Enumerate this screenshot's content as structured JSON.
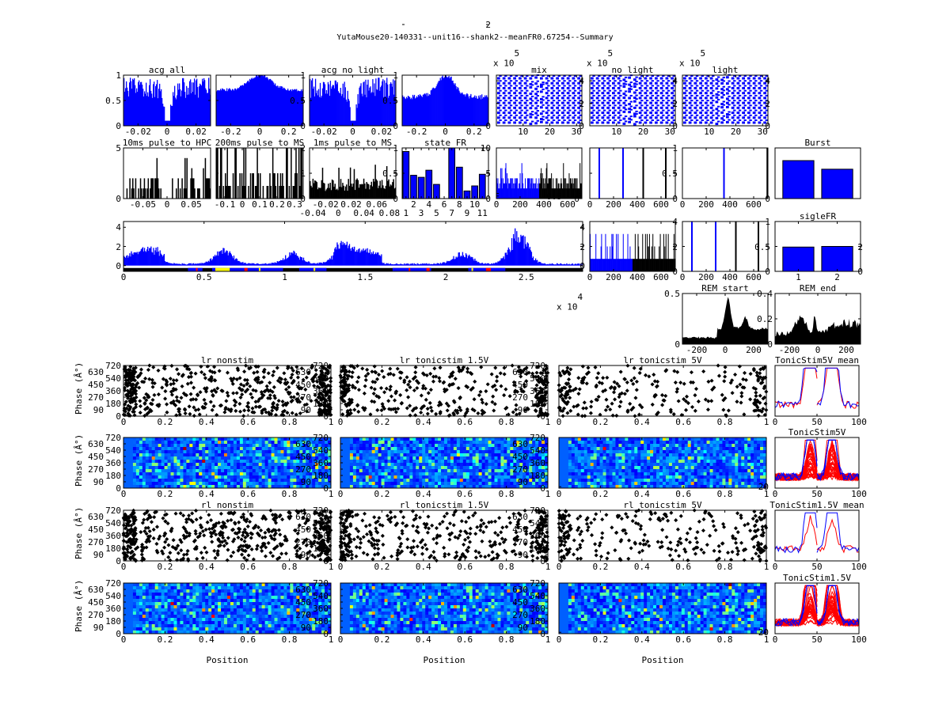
{
  "figure_title": "YutaMouse20-140331--unit16--shank2--meanFR0.67254--Summary",
  "multipliers": {
    "x10_5": "x 10",
    "exp5": "5",
    "x10_4": "x 10",
    "exp4": "4"
  },
  "phase_ylabel": "Phase (Â°)",
  "position_xlabel": "Position",
  "colors": {
    "blue": "#0000ff",
    "red": "#ff0000",
    "black": "#000000",
    "yellow": "#ffff00"
  },
  "chart_data": [
    {
      "id": "acg_all",
      "type": "bar",
      "title": "acg all",
      "xlim": [
        -0.03,
        0.03
      ],
      "ylim": [
        0,
        1
      ],
      "xticks": [
        "-0.02",
        "0",
        "0.02"
      ],
      "yticks": [
        "0",
        "0.5",
        "1"
      ],
      "yside": "left",
      "color": "#0000ff"
    },
    {
      "id": "acg_all_wide",
      "type": "bar",
      "title": "",
      "xlim": [
        -0.3,
        0.3
      ],
      "ylim": [
        0,
        1
      ],
      "xticks": [
        "-0.2",
        "0",
        "0.2"
      ],
      "yticks": [
        "0",
        "0.5",
        "1"
      ],
      "yside": "right",
      "color": "#0000ff"
    },
    {
      "id": "acg_nolight",
      "type": "bar",
      "title": "acg no light",
      "xlim": [
        -0.03,
        0.03
      ],
      "ylim": [
        0,
        1
      ],
      "xticks": [
        "-0.02",
        "0",
        "0.02"
      ],
      "yticks": [
        "0",
        "0.5",
        "1"
      ],
      "yside": "right",
      "color": "#0000ff"
    },
    {
      "id": "acg_nolight_wide",
      "type": "bar",
      "title": "",
      "xlim": [
        -0.3,
        0.3
      ],
      "ylim": [
        0,
        1
      ],
      "xticks": [
        "-0.2",
        "0",
        "0.2"
      ],
      "yticks": [
        "0",
        "2",
        "4"
      ],
      "yside": "right",
      "color": "#0000ff"
    },
    {
      "id": "wave_mix",
      "type": "waveform",
      "title": "mix",
      "xlim": [
        0,
        32
      ],
      "ylim": [
        0,
        4.5
      ],
      "xticks": [
        "10",
        "20",
        "30"
      ],
      "yticks": [
        "0",
        "2",
        "4"
      ],
      "yside": "right",
      "multiplier": true
    },
    {
      "id": "wave_nolight",
      "type": "waveform",
      "title": "no light",
      "xlim": [
        0,
        32
      ],
      "ylim": [
        0,
        4.5
      ],
      "xticks": [
        "10",
        "20",
        "30"
      ],
      "yticks": [
        "0",
        "2",
        "4"
      ],
      "yside": "right",
      "multiplier": true
    },
    {
      "id": "wave_light",
      "type": "waveform",
      "title": "light",
      "xlim": [
        0,
        32
      ],
      "ylim": [
        0,
        4.5
      ],
      "xticks": [
        "10",
        "20",
        "30"
      ],
      "yticks": [
        "0",
        "2",
        "4"
      ],
      "yside": "right",
      "multiplier": true
    },
    {
      "id": "pulse10_hpc",
      "type": "bar",
      "title": "10ms pulse to HPC",
      "xlim": [
        -0.09,
        0.09
      ],
      "ylim": [
        0,
        5
      ],
      "xticks": [
        "-0.05",
        "0",
        "0.05"
      ],
      "yticks": [
        "0",
        "5"
      ],
      "yside": "left",
      "color": "#000000"
    },
    {
      "id": "pulse200_ms",
      "type": "bar",
      "title": "200ms pulse to MS",
      "xlim": [
        -0.15,
        0.35
      ],
      "ylim": [
        0,
        2
      ],
      "xticks": [
        "-0.1",
        "0",
        "0.1",
        "0.2",
        "0.3"
      ],
      "yticks": [
        "0",
        "1",
        "2"
      ],
      "yside": "right",
      "color": "#000000"
    },
    {
      "id": "pulse1_ms",
      "type": "bar",
      "title": "1ms pulse to MS",
      "xlim": [
        -0.045,
        0.09
      ],
      "ylim": [
        0,
        1
      ],
      "xticks": [
        "-0.04",
        "-0.02",
        "0",
        "0.02",
        "0.04",
        "0.06",
        "0.08"
      ],
      "yticks": [
        "0",
        "0.5",
        "1"
      ],
      "yside": "right",
      "color": "#000000"
    },
    {
      "id": "state_fr",
      "type": "categorical_bar",
      "title": "state FR",
      "xlim": [
        0.5,
        11.8
      ],
      "ylim": [
        0,
        10
      ],
      "xticks": [
        "1",
        "2",
        "3",
        "4",
        "5",
        "6",
        "7",
        "8",
        "9",
        "10",
        "11"
      ],
      "yticks": [
        "0",
        "5",
        "10"
      ],
      "yside": "right",
      "values": [
        9.3,
        4.6,
        4.2,
        5.6,
        2.8,
        0,
        10,
        6.2,
        1.5,
        2.5,
        4.8
      ],
      "color": "#0000ff"
    },
    {
      "id": "isi_mix",
      "type": "bar",
      "title": "",
      "xlim": [
        0,
        720
      ],
      "ylim": [
        0,
        10
      ],
      "xticks": [
        "0",
        "200",
        "400",
        "600"
      ],
      "yticks": [
        "0",
        "0.5",
        "1"
      ],
      "yside": "right",
      "split": 360
    },
    {
      "id": "vlines_a",
      "type": "vlines",
      "title": "",
      "xlim": [
        0,
        720
      ],
      "ylim": [
        0,
        1
      ],
      "xticks": [
        "0",
        "200",
        "400",
        "600"
      ],
      "yticks": [
        "0",
        "0.5",
        "1"
      ],
      "yside": "right",
      "blue": [
        80,
        280
      ],
      "black": [
        450,
        640
      ]
    },
    {
      "id": "vlines_b",
      "type": "vlines",
      "title": "",
      "xlim": [
        0,
        720
      ],
      "ylim": [
        0,
        1
      ],
      "xticks": [
        "0",
        "200",
        "400",
        "600"
      ],
      "yticks": [
        "0"
      ],
      "yside": "right",
      "blue": [
        350
      ],
      "black": [
        715
      ]
    },
    {
      "id": "burst",
      "type": "categorical_bar",
      "title": "Burst",
      "xlim": [
        0.4,
        2.6
      ],
      "ylim": [
        0,
        1
      ],
      "xticks": [],
      "yticks": [],
      "yside": "right",
      "values": [
        0.75,
        0.58
      ],
      "color": "#0000ff"
    },
    {
      "id": "fr_timeline",
      "type": "timeline",
      "title": "",
      "xlim": [
        0,
        2.85
      ],
      "ylim": [
        -0.6,
        4.6
      ],
      "xticks": [
        "0",
        "0.5",
        "1",
        "1.5",
        "2",
        "2.5"
      ],
      "yticks": [
        "0",
        "2",
        "4"
      ],
      "yside": "both",
      "multiplier_exp": "4"
    },
    {
      "id": "isi_mix2",
      "type": "bar",
      "title": "",
      "xlim": [
        0,
        720
      ],
      "ylim": [
        0,
        4
      ],
      "xticks": [
        "0",
        "200",
        "400",
        "600"
      ],
      "yticks": [
        "0",
        "2",
        "4"
      ],
      "yside": "right",
      "split": 360
    },
    {
      "id": "vlines_c",
      "type": "vlines",
      "title": "",
      "xlim": [
        0,
        720
      ],
      "ylim": [
        0,
        1
      ],
      "xticks": [
        "0",
        "200",
        "400",
        "600"
      ],
      "yticks": [
        "0",
        "0.5",
        "1"
      ],
      "yside": "right",
      "blue": [
        80,
        280
      ],
      "black": [
        450,
        640
      ]
    },
    {
      "id": "sigle_fr",
      "type": "categorical_bar",
      "title": "sigleFR",
      "xlim": [
        0.4,
        2.6
      ],
      "ylim": [
        0,
        4
      ],
      "xticks": [
        "1",
        "2"
      ],
      "yticks": [
        "0",
        "2"
      ],
      "yside": "right",
      "values": [
        1.95,
        2.0
      ],
      "color": "#0000ff"
    },
    {
      "id": "rem_start",
      "type": "area",
      "title": "REM start",
      "xlim": [
        -300,
        300
      ],
      "ylim": [
        0,
        0.5
      ],
      "xticks": [
        "-200",
        "0",
        "200"
      ],
      "yticks": [
        "0",
        "0.5"
      ],
      "yside": "left"
    },
    {
      "id": "rem_end",
      "type": "area",
      "title": "REM end",
      "xlim": [
        -300,
        300
      ],
      "ylim": [
        0,
        0.4
      ],
      "xticks": [
        "-200",
        "0",
        "200"
      ],
      "yticks": [
        "0",
        "0.2",
        "0.4"
      ],
      "yside": "left"
    },
    {
      "id": "lr_nonstim",
      "type": "scatter",
      "title": "lr nonstim",
      "xlim": [
        0,
        1
      ],
      "ylim": [
        0,
        720
      ],
      "xticks": [
        "0",
        "0.2",
        "0.4",
        "0.6",
        "0.8",
        "1"
      ],
      "yticks": [
        "0",
        "90",
        "180",
        "270",
        "360",
        "450",
        "540",
        "630",
        "720"
      ],
      "yside": "both"
    },
    {
      "id": "lr_15",
      "type": "scatter",
      "title": "lr tonicstim 1.5V",
      "xlim": [
        0,
        1
      ],
      "ylim": [
        0,
        720
      ],
      "xticks": [
        "0",
        "0.2",
        "0.4",
        "0.6",
        "0.8",
        "1"
      ],
      "yticks": [
        "0",
        "90",
        "180",
        "270",
        "360",
        "450",
        "540",
        "630",
        "720"
      ],
      "yside": "right"
    },
    {
      "id": "lr_5",
      "type": "scatter",
      "title": "lr tonicstim 5V",
      "xlim": [
        0,
        1
      ],
      "ylim": [
        0,
        720
      ],
      "xticks": [
        "0",
        "0.2",
        "0.4",
        "0.6",
        "0.8",
        "1"
      ],
      "yticks": [],
      "yside": "right"
    },
    {
      "id": "mean_5v",
      "type": "lines",
      "title": "TonicStim5V mean",
      "xlim": [
        0,
        100
      ],
      "ylim": [
        0,
        1
      ],
      "xticks": [
        "0",
        "50",
        "100"
      ],
      "yticks": [],
      "yside": "none"
    },
    {
      "id": "lr_nonstim_map",
      "type": "heatmap",
      "title": "",
      "xlim": [
        0,
        1
      ],
      "ylim": [
        0,
        720
      ],
      "xticks": [
        "0",
        "0.2",
        "0.4",
        "0.6",
        "0.8",
        "1"
      ],
      "yticks": [
        "0",
        "90",
        "180",
        "270",
        "360",
        "450",
        "540",
        "630",
        "720"
      ],
      "yside": "both"
    },
    {
      "id": "lr_15_map",
      "type": "heatmap",
      "title": "",
      "xlim": [
        0,
        1
      ],
      "ylim": [
        0,
        720
      ],
      "xticks": [
        "0",
        "0.2",
        "0.4",
        "0.6",
        "0.8",
        "1"
      ],
      "yticks": [
        "0",
        "90",
        "180",
        "270",
        "360",
        "450",
        "540",
        "630",
        "720"
      ],
      "yside": "right"
    },
    {
      "id": "lr_5_map",
      "type": "heatmap",
      "title": "",
      "xlim": [
        0,
        1
      ],
      "ylim": [
        0,
        720
      ],
      "xticks": [
        "0",
        "0.2",
        "0.4",
        "0.6",
        "0.8",
        "1"
      ],
      "yticks": [
        "20"
      ],
      "yside": "right"
    },
    {
      "id": "all_5v",
      "type": "manylines",
      "title": "TonicStim5V",
      "xlim": [
        0,
        100
      ],
      "ylim": [
        0,
        1
      ],
      "xticks": [
        "0",
        "50",
        "100"
      ],
      "yticks": [],
      "yside": "none"
    },
    {
      "id": "rl_nonstim",
      "type": "scatter",
      "title": "rl nonstim",
      "xlim": [
        0,
        1
      ],
      "ylim": [
        0,
        720
      ],
      "xticks": [
        "0",
        "0.2",
        "0.4",
        "0.6",
        "0.8",
        "1"
      ],
      "yticks": [
        "0",
        "90",
        "180",
        "270",
        "360",
        "450",
        "540",
        "630",
        "720"
      ],
      "yside": "both"
    },
    {
      "id": "rl_15",
      "type": "scatter",
      "title": "rl tonicstim 1.5V",
      "xlim": [
        0,
        1
      ],
      "ylim": [
        0,
        720
      ],
      "xticks": [
        "0",
        "0.2",
        "0.4",
        "0.6",
        "0.8",
        "1"
      ],
      "yticks": [
        "0",
        "90",
        "180",
        "270",
        "360",
        "450",
        "540",
        "630",
        "720"
      ],
      "yside": "right"
    },
    {
      "id": "rl_5",
      "type": "scatter",
      "title": "rl tonicstim 5V",
      "xlim": [
        0,
        1
      ],
      "ylim": [
        0,
        720
      ],
      "xticks": [
        "0",
        "0.2",
        "0.4",
        "0.6",
        "0.8",
        "1"
      ],
      "yticks": [],
      "yside": "right"
    },
    {
      "id": "mean_15v",
      "type": "lines",
      "title": "TonicStim1.5V mean",
      "xlim": [
        0,
        100
      ],
      "ylim": [
        0,
        1
      ],
      "xticks": [
        "0",
        "50",
        "100"
      ],
      "yticks": [],
      "yside": "none"
    },
    {
      "id": "rl_nonstim_map",
      "type": "heatmap",
      "title": "",
      "xlim": [
        0,
        1
      ],
      "ylim": [
        0,
        720
      ],
      "xticks": [
        "0",
        "0.2",
        "0.4",
        "0.6",
        "0.8",
        "1"
      ],
      "yticks": [
        "0",
        "90",
        "180",
        "270",
        "360",
        "450",
        "540",
        "630",
        "720"
      ],
      "yside": "both",
      "xlabel": true
    },
    {
      "id": "rl_15_map",
      "type": "heatmap",
      "title": "",
      "xlim": [
        0,
        1
      ],
      "ylim": [
        0,
        720
      ],
      "xticks": [
        "0",
        "0.2",
        "0.4",
        "0.6",
        "0.8",
        "1"
      ],
      "yticks": [
        "0",
        "90",
        "180",
        "270",
        "360",
        "450",
        "540",
        "630",
        "720"
      ],
      "yside": "right",
      "xlabel": true
    },
    {
      "id": "rl_5_map",
      "type": "heatmap",
      "title": "",
      "xlim": [
        0,
        1
      ],
      "ylim": [
        0,
        720
      ],
      "xticks": [
        "0",
        "0.2",
        "0.4",
        "0.6",
        "0.8",
        "1"
      ],
      "yticks": [
        "20"
      ],
      "yside": "right",
      "xlabel": true
    },
    {
      "id": "all_15v",
      "type": "manylines",
      "title": "TonicStim1.5V",
      "xlim": [
        0,
        100
      ],
      "ylim": [
        0,
        1
      ],
      "xticks": [
        "0",
        "50",
        "100"
      ],
      "yticks": [],
      "yside": "none"
    }
  ]
}
